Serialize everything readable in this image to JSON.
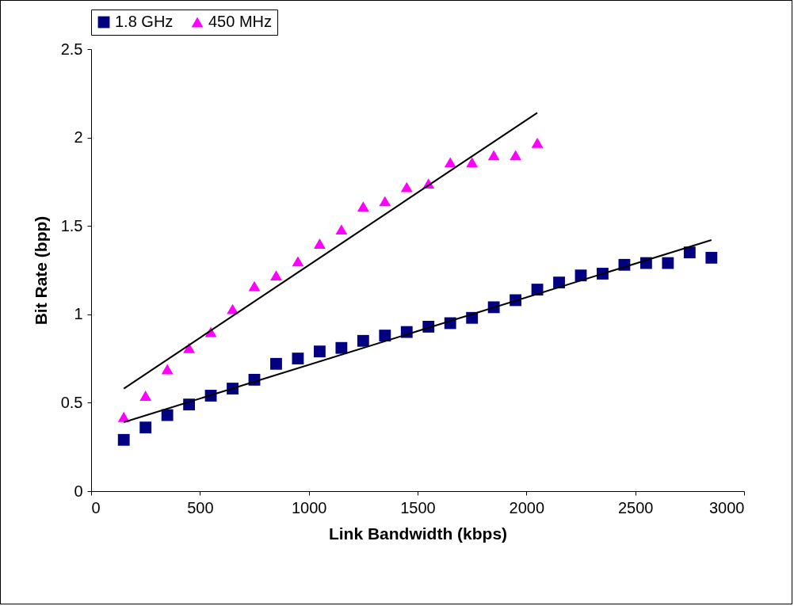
{
  "chart_data": {
    "type": "scatter",
    "xlabel": "Link Bandwidth (kbps)",
    "ylabel": "Bit Rate (bpp)",
    "xlim": [
      0,
      3000
    ],
    "xticks": [
      0,
      500,
      1000,
      1500,
      2000,
      2500,
      3000
    ],
    "ylim": [
      0,
      2.5
    ],
    "yticks": [
      0,
      0.5,
      1,
      1.5,
      2,
      2.5
    ],
    "grid": false,
    "legend": "top",
    "series": [
      {
        "name": "1.8 GHz",
        "color": "#000080",
        "marker": "square",
        "x": [
          150,
          250,
          350,
          450,
          550,
          650,
          750,
          850,
          950,
          1050,
          1150,
          1250,
          1350,
          1450,
          1550,
          1650,
          1750,
          1850,
          1950,
          2050,
          2150,
          2250,
          2350,
          2450,
          2550,
          2650,
          2750,
          2850
        ],
        "values": [
          0.29,
          0.36,
          0.43,
          0.49,
          0.54,
          0.58,
          0.63,
          0.72,
          0.75,
          0.79,
          0.81,
          0.85,
          0.88,
          0.9,
          0.93,
          0.95,
          0.98,
          1.04,
          1.08,
          1.14,
          1.18,
          1.22,
          1.23,
          1.28,
          1.29,
          1.29,
          1.35,
          1.32
        ]
      },
      {
        "name": "450 MHz",
        "color": "#ff00ff",
        "marker": "triangle",
        "x": [
          150,
          250,
          350,
          450,
          550,
          650,
          750,
          850,
          950,
          1050,
          1150,
          1250,
          1350,
          1450,
          1550,
          1650,
          1750,
          1850,
          1950,
          2050
        ],
        "values": [
          0.42,
          0.54,
          0.69,
          0.81,
          0.9,
          1.03,
          1.16,
          1.22,
          1.3,
          1.4,
          1.48,
          1.61,
          1.64,
          1.72,
          1.74,
          1.86,
          1.86,
          1.9,
          1.9,
          1.97
        ]
      },
      {
        "type": "line",
        "color": "#000000",
        "x": [
          150,
          2850
        ],
        "values": [
          0.39,
          1.42
        ]
      },
      {
        "type": "line",
        "color": "#000000",
        "x": [
          150,
          2050
        ],
        "values": [
          0.58,
          2.14
        ]
      }
    ]
  }
}
